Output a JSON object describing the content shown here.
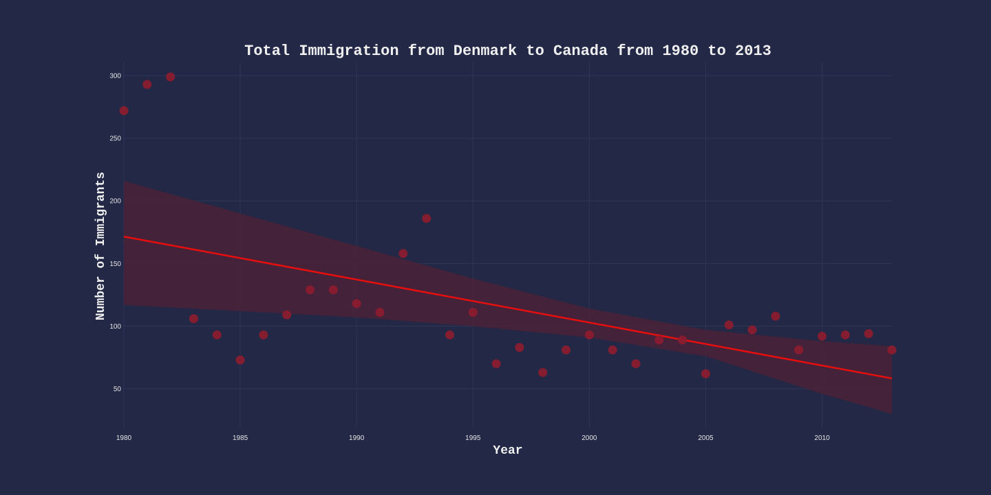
{
  "chart_data": {
    "type": "scatter",
    "title": "Total Immigration from Denmark to Canada from 1980 to 2013",
    "xlabel": "Year",
    "ylabel": "Number of Immigrants",
    "xlim": [
      1980,
      2013
    ],
    "ylim": [
      19,
      311
    ],
    "x_ticks": [
      1980,
      1985,
      1990,
      1995,
      2000,
      2005,
      2010
    ],
    "y_ticks": [
      50,
      100,
      150,
      200,
      250,
      300
    ],
    "grid": true,
    "legend": "none",
    "series": [
      {
        "x": [
          1980,
          1981,
          1982,
          1983,
          1984,
          1985,
          1986,
          1987,
          1988,
          1989,
          1990,
          1991,
          1992,
          1993,
          1994,
          1995,
          1996,
          1997,
          1998,
          1999,
          2000,
          2001,
          2002,
          2003,
          2004,
          2005,
          2006,
          2007,
          2008,
          2009,
          2010,
          2011,
          2012,
          2013
        ],
        "values": [
          272,
          293,
          299,
          106,
          93,
          73,
          93,
          109,
          129,
          129,
          118,
          111,
          158,
          186,
          93,
          111,
          70,
          83,
          63,
          81,
          93,
          81,
          70,
          89,
          89,
          62,
          101,
          97,
          108,
          81,
          92,
          93,
          94,
          81
        ]
      }
    ],
    "trend_line": {
      "x": [
        1980,
        2013
      ],
      "y": [
        171.5,
        58.3
      ]
    },
    "confidence_band": {
      "x": [
        1980,
        1985,
        1990,
        1995,
        2000,
        2005,
        2010,
        2013
      ],
      "upper": [
        216,
        190,
        164,
        138,
        114,
        97,
        88,
        84
      ],
      "lower": [
        117,
        112,
        107,
        100,
        91,
        76,
        46,
        30
      ]
    },
    "colors": {
      "background": "#222845",
      "grid": "#2f3656",
      "text": "#f0f0f0",
      "marker": "#8b1c2f",
      "trend_line": "#e80e0e",
      "band": "#4a2137"
    }
  }
}
